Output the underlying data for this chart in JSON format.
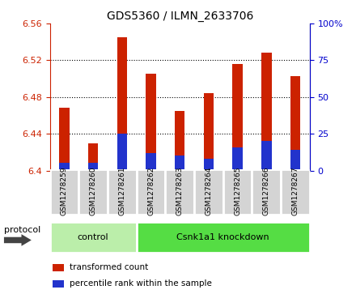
{
  "title": "GDS5360 / ILMN_2633706",
  "samples": [
    "GSM1278259",
    "GSM1278260",
    "GSM1278261",
    "GSM1278262",
    "GSM1278263",
    "GSM1278264",
    "GSM1278265",
    "GSM1278266",
    "GSM1278267"
  ],
  "transformed_count": [
    6.468,
    6.43,
    6.545,
    6.505,
    6.465,
    6.484,
    6.516,
    6.528,
    6.503
  ],
  "percentile_rank": [
    5,
    5,
    25,
    12,
    10,
    8,
    16,
    20,
    14
  ],
  "ymin": 6.4,
  "ymax": 6.56,
  "yticks_left": [
    6.4,
    6.44,
    6.48,
    6.52,
    6.56
  ],
  "yticks_right": [
    0,
    25,
    50,
    75,
    100
  ],
  "bar_color": "#cc2200",
  "percentile_color": "#2233cc",
  "groups": [
    {
      "label": "control",
      "start": 0,
      "end": 3,
      "color": "#bbeeaa"
    },
    {
      "label": "Csnk1a1 knockdown",
      "start": 3,
      "end": 9,
      "color": "#55dd44"
    }
  ],
  "protocol_label": "protocol",
  "legend_items": [
    {
      "label": "transformed count",
      "color": "#cc2200"
    },
    {
      "label": "percentile rank within the sample",
      "color": "#2233cc"
    }
  ],
  "tick_color_left": "#cc2200",
  "tick_color_right": "#0000cc",
  "bar_base": 6.4,
  "bar_width": 0.35,
  "figsize": [
    4.4,
    3.63
  ],
  "dpi": 100
}
